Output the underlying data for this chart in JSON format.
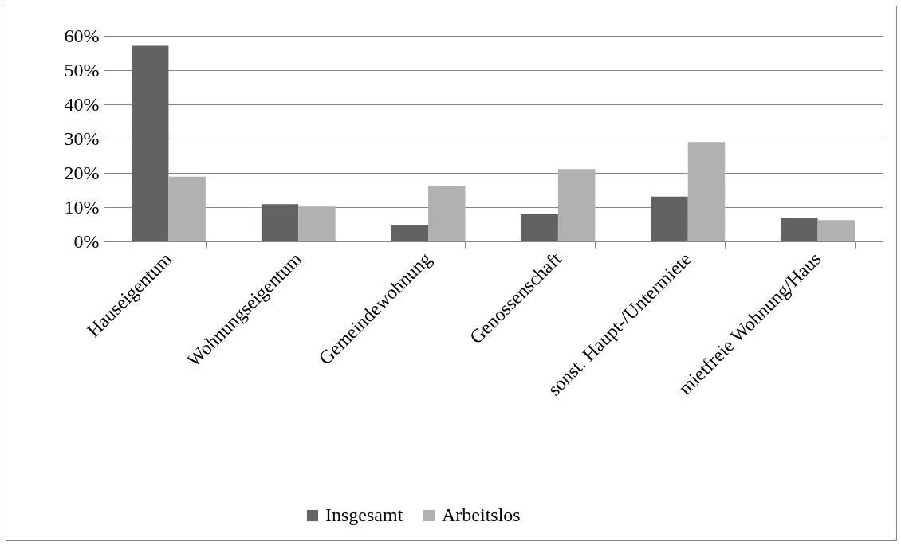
{
  "chart_data": {
    "type": "bar",
    "categories": [
      "Hauseigentum",
      "Wohnungseigentum",
      "Gemeindewohnung",
      "Genossenschaft",
      "sonst. Haupt-/Untermiete",
      "mietfreie Wohnung/Haus"
    ],
    "series": [
      {
        "name": "Insgesamt",
        "color": "#626262",
        "values": [
          57.1,
          10.9,
          4.9,
          7.9,
          13.1,
          7.0
        ]
      },
      {
        "name": "Arbeitslos",
        "color": "#b1b1b1",
        "values": [
          18.9,
          10.2,
          16.2,
          21.1,
          29.0,
          6.2
        ]
      }
    ],
    "ylim": [
      0,
      60
    ],
    "yticks": [
      {
        "value": 0,
        "label": "0%"
      },
      {
        "value": 10,
        "label": "10%"
      },
      {
        "value": 20,
        "label": "20%"
      },
      {
        "value": 30,
        "label": "30%"
      },
      {
        "value": 40,
        "label": "40%"
      },
      {
        "value": 50,
        "label": "50%"
      },
      {
        "value": 60,
        "label": "60%"
      }
    ],
    "grid": "y",
    "legend": "bottom"
  }
}
